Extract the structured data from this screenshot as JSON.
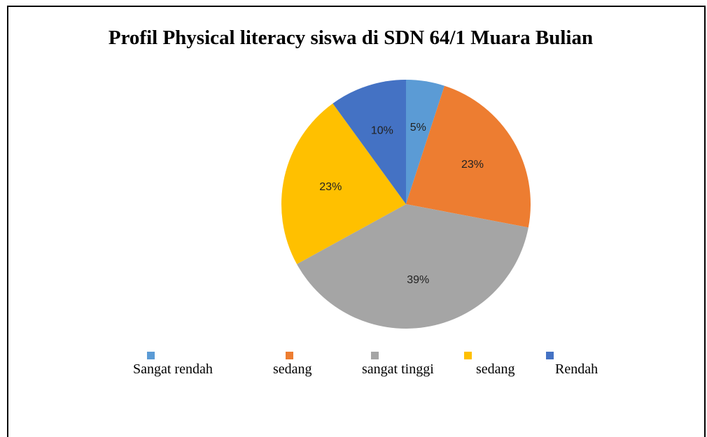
{
  "chart_data": {
    "type": "pie",
    "title": "Profil Physical literacy siswa di SDN 64/1 Muara Bulian",
    "categories": [
      "Sangat rendah",
      "sedang",
      "sangat tinggi",
      "sedang",
      "Rendah"
    ],
    "values": [
      5,
      23,
      39,
      23,
      10
    ],
    "value_labels": [
      "5%",
      "23%",
      "39%",
      "23%",
      "10%"
    ],
    "colors": [
      "#5b9bd5",
      "#ed7d31",
      "#a5a5a5",
      "#ffc000",
      "#4472c4"
    ],
    "legend": "bottom"
  }
}
